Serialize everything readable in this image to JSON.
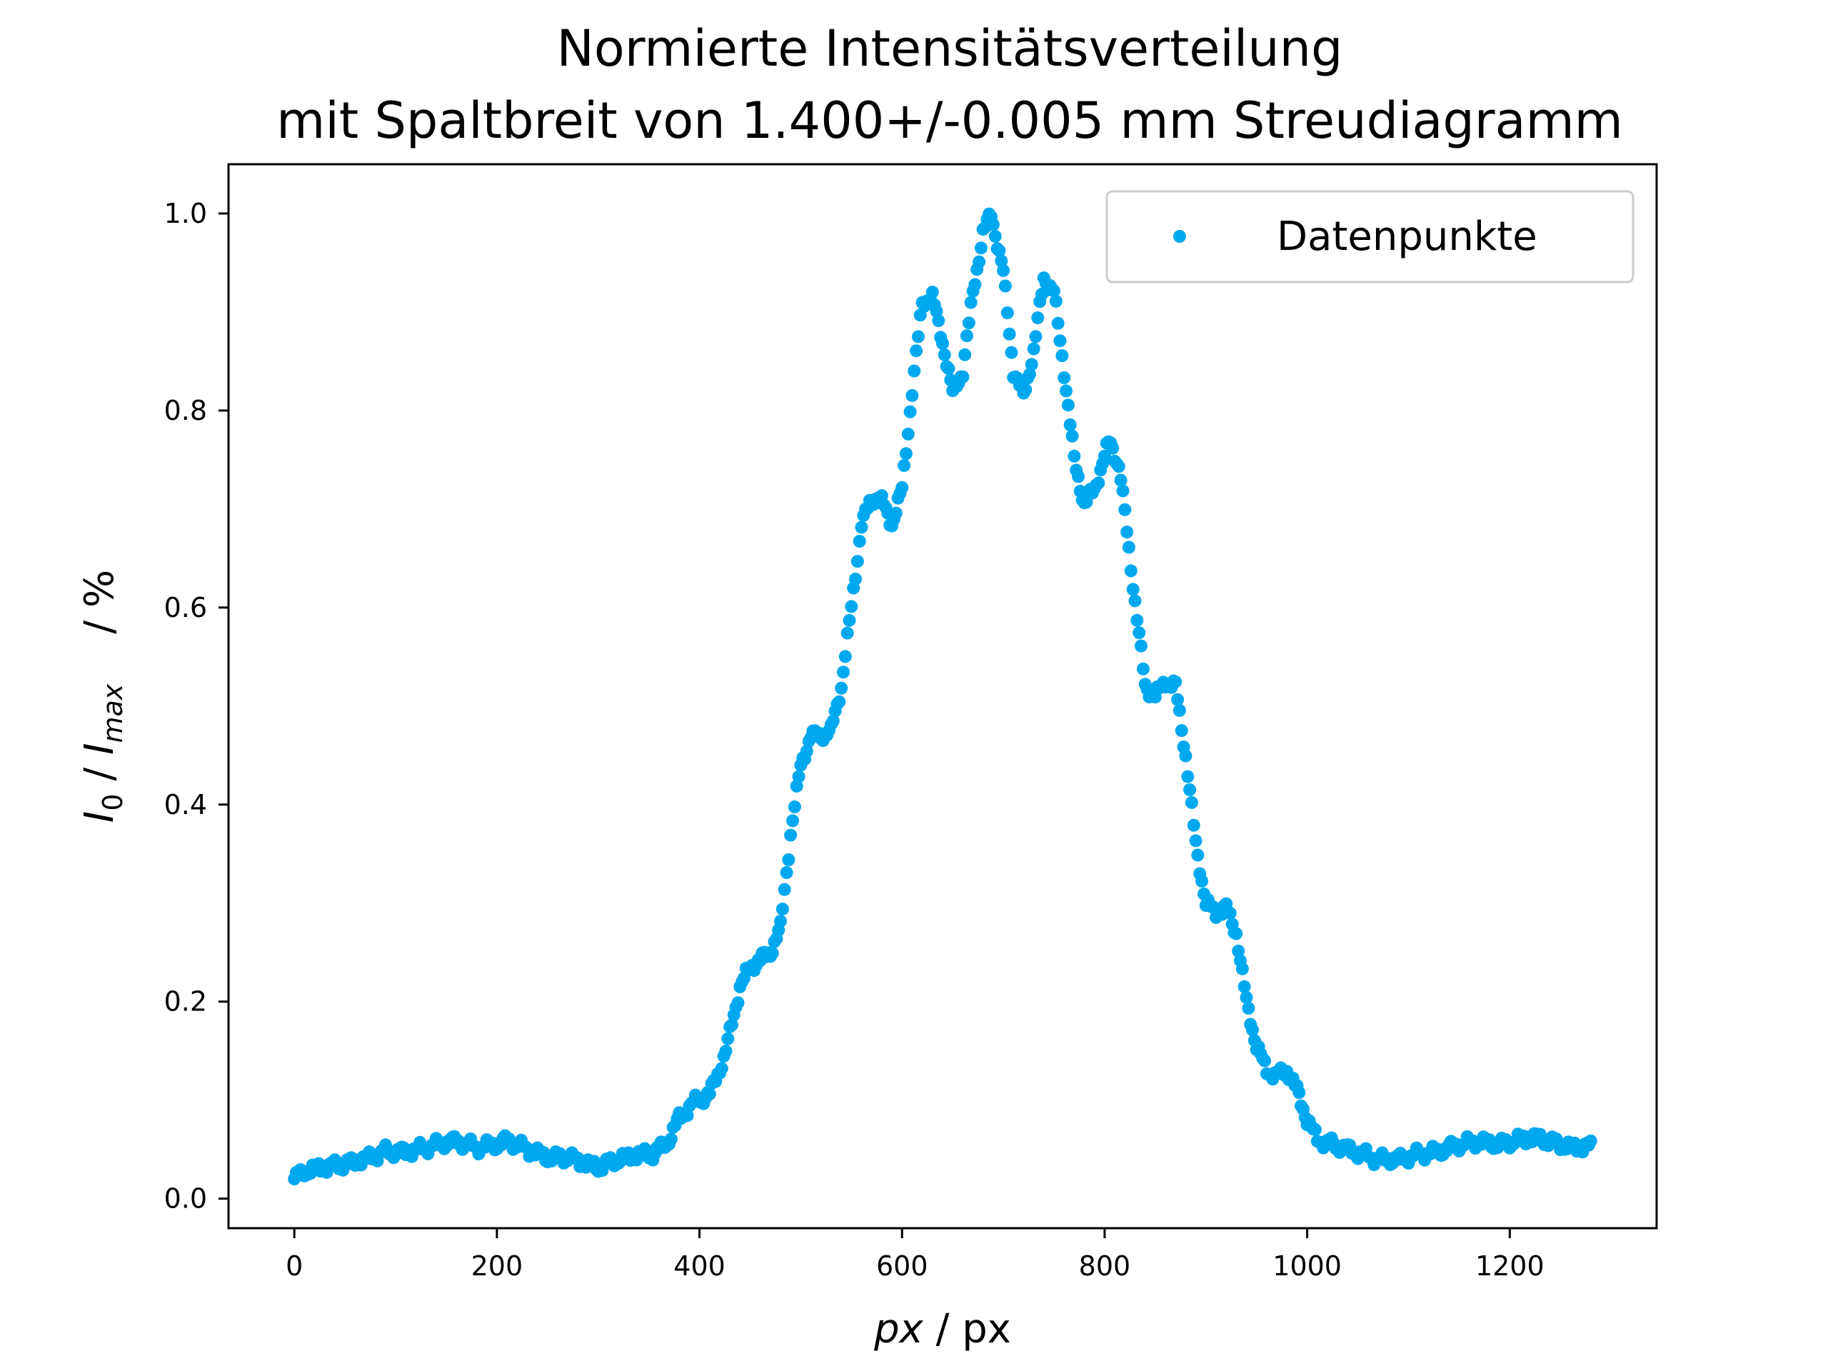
{
  "chart_data": {
    "type": "scatter",
    "title_line1": "Normierte Intensitätsverteilung",
    "title_line2": "mit Spaltbreit von 1.400+/-0.005 mm Streudiagramm",
    "xlabel_var": "px",
    "xlabel_unit": " / px",
    "ylabel_i0": "I",
    "ylabel_sub0": "0",
    "ylabel_sep": " / ",
    "ylabel_imax": "I",
    "ylabel_submax": "max",
    "ylabel_unit": "/ %",
    "xlim": [
      -65,
      1345
    ],
    "ylim": [
      -0.03,
      1.05
    ],
    "xticks": [
      0,
      200,
      400,
      600,
      800,
      1000,
      1200
    ],
    "yticks": [
      0.0,
      0.2,
      0.4,
      0.6,
      0.8,
      1.0
    ],
    "xtick_labels": [
      "0",
      "200",
      "400",
      "600",
      "800",
      "1000",
      "1200"
    ],
    "ytick_labels": [
      "0.0",
      "0.2",
      "0.4",
      "0.6",
      "0.8",
      "1.0"
    ],
    "grid": false,
    "legend_position": "top-right",
    "series": [
      {
        "name": "Datenpunkte",
        "color": "#00a8f0",
        "x_start": 0,
        "x_end": 1280,
        "x_step": 2,
        "curve": [
          [
            0,
            0.02
          ],
          [
            10,
            0.028
          ],
          [
            30,
            0.032
          ],
          [
            50,
            0.035
          ],
          [
            70,
            0.04
          ],
          [
            90,
            0.048
          ],
          [
            110,
            0.047
          ],
          [
            130,
            0.052
          ],
          [
            150,
            0.057
          ],
          [
            160,
            0.058
          ],
          [
            180,
            0.052
          ],
          [
            200,
            0.055
          ],
          [
            210,
            0.059
          ],
          [
            230,
            0.05
          ],
          [
            250,
            0.042
          ],
          [
            270,
            0.042
          ],
          [
            290,
            0.035
          ],
          [
            300,
            0.032
          ],
          [
            320,
            0.04
          ],
          [
            340,
            0.045
          ],
          [
            355,
            0.045
          ],
          [
            370,
            0.06
          ],
          [
            380,
            0.082
          ],
          [
            395,
            0.098
          ],
          [
            410,
            0.106
          ],
          [
            425,
            0.145
          ],
          [
            440,
            0.215
          ],
          [
            450,
            0.235
          ],
          [
            470,
            0.25
          ],
          [
            480,
            0.275
          ],
          [
            490,
            0.37
          ],
          [
            500,
            0.44
          ],
          [
            510,
            0.47
          ],
          [
            520,
            0.47
          ],
          [
            530,
            0.475
          ],
          [
            540,
            0.52
          ],
          [
            550,
            0.6
          ],
          [
            560,
            0.685
          ],
          [
            570,
            0.71
          ],
          [
            578,
            0.712
          ],
          [
            590,
            0.685
          ],
          [
            600,
            0.72
          ],
          [
            610,
            0.82
          ],
          [
            620,
            0.91
          ],
          [
            630,
            0.915
          ],
          [
            640,
            0.87
          ],
          [
            650,
            0.818
          ],
          [
            660,
            0.84
          ],
          [
            670,
            0.92
          ],
          [
            680,
            0.98
          ],
          [
            688,
            1.0
          ],
          [
            700,
            0.94
          ],
          [
            710,
            0.84
          ],
          [
            720,
            0.815
          ],
          [
            730,
            0.86
          ],
          [
            740,
            0.935
          ],
          [
            750,
            0.92
          ],
          [
            760,
            0.84
          ],
          [
            770,
            0.75
          ],
          [
            780,
            0.705
          ],
          [
            790,
            0.72
          ],
          [
            805,
            0.77
          ],
          [
            815,
            0.74
          ],
          [
            825,
            0.65
          ],
          [
            840,
            0.52
          ],
          [
            850,
            0.51
          ],
          [
            860,
            0.525
          ],
          [
            870,
            0.52
          ],
          [
            880,
            0.45
          ],
          [
            890,
            0.36
          ],
          [
            900,
            0.3
          ],
          [
            910,
            0.29
          ],
          [
            920,
            0.295
          ],
          [
            930,
            0.27
          ],
          [
            940,
            0.2
          ],
          [
            950,
            0.155
          ],
          [
            960,
            0.13
          ],
          [
            970,
            0.125
          ],
          [
            980,
            0.13
          ],
          [
            990,
            0.11
          ],
          [
            1000,
            0.08
          ],
          [
            1010,
            0.06
          ],
          [
            1025,
            0.055
          ],
          [
            1040,
            0.05
          ],
          [
            1055,
            0.045
          ],
          [
            1070,
            0.04
          ],
          [
            1090,
            0.04
          ],
          [
            1110,
            0.045
          ],
          [
            1130,
            0.048
          ],
          [
            1150,
            0.055
          ],
          [
            1170,
            0.058
          ],
          [
            1190,
            0.055
          ],
          [
            1210,
            0.06
          ],
          [
            1225,
            0.062
          ],
          [
            1240,
            0.058
          ],
          [
            1260,
            0.052
          ],
          [
            1280,
            0.053
          ]
        ]
      }
    ]
  }
}
